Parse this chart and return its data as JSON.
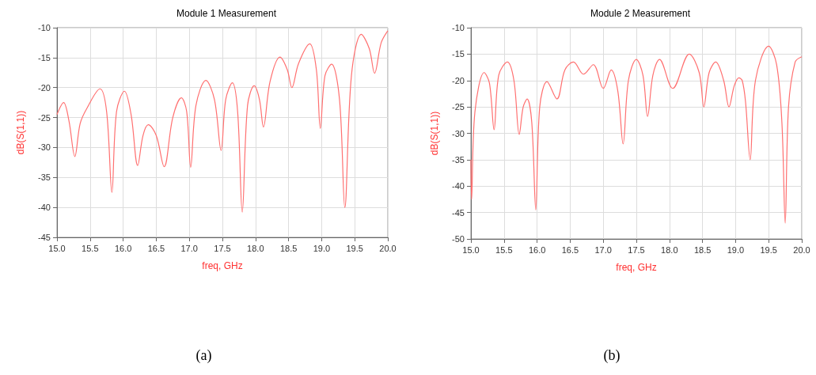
{
  "chart_data": [
    {
      "type": "line",
      "title": "Module 1 Measurement",
      "xlabel": "freq, GHz",
      "ylabel": "dB(S(1,1))",
      "annotations": [
        "(a)"
      ],
      "grid": true,
      "marker": "none",
      "line_style": "solid",
      "xlim": [
        15,
        20
      ],
      "xticks": [
        {
          "value": 15,
          "label": "15.0"
        },
        {
          "value": 15.5,
          "label": "15.5"
        },
        {
          "value": 16,
          "label": "16.0"
        },
        {
          "value": 16.5,
          "label": "16.5"
        },
        {
          "value": 17,
          "label": "17.0"
        },
        {
          "value": 17.5,
          "label": "17.5"
        },
        {
          "value": 18,
          "label": "18.0"
        },
        {
          "value": 18.5,
          "label": "18.5"
        },
        {
          "value": 19,
          "label": "19.0"
        },
        {
          "value": 19.5,
          "label": "19.5"
        },
        {
          "value": 20,
          "label": "20.0"
        }
      ],
      "ylim": [
        -45,
        -10
      ],
      "yticks": [
        -45,
        -40,
        -35,
        -30,
        -25,
        -20,
        -15,
        -10
      ],
      "series": [
        {
          "color": "#ff7070",
          "x": [
            15.0,
            15.1,
            15.18,
            15.27,
            15.35,
            15.45,
            15.65,
            15.75,
            15.83,
            15.9,
            16.02,
            16.12,
            16.22,
            16.3,
            16.38,
            16.5,
            16.62,
            16.75,
            16.88,
            16.96,
            17.02,
            17.1,
            17.25,
            17.38,
            17.48,
            17.55,
            17.65,
            17.73,
            17.8,
            17.88,
            17.98,
            18.06,
            18.12,
            18.22,
            18.37,
            18.48,
            18.55,
            18.65,
            18.82,
            18.92,
            18.98,
            19.05,
            19.15,
            19.27,
            19.35,
            19.45,
            19.6,
            19.72,
            19.8,
            19.9,
            20.0
          ],
          "values": [
            -24.5,
            -22.5,
            -25.5,
            -31.5,
            -26,
            -23.5,
            -20.2,
            -24,
            -37.5,
            -24,
            -20.6,
            -24.5,
            -33,
            -28,
            -26.2,
            -28,
            -33.2,
            -25,
            -21.7,
            -24,
            -33.3,
            -23,
            -18.8,
            -22,
            -30.5,
            -22,
            -19.2,
            -24,
            -40.8,
            -23,
            -19.7,
            -22,
            -26.6,
            -19,
            -14.9,
            -17,
            -20,
            -16,
            -12.7,
            -17,
            -26.8,
            -18,
            -16.1,
            -22,
            -40,
            -18,
            -11.1,
            -13.5,
            -17.6,
            -12.5,
            -10.5
          ]
        }
      ]
    },
    {
      "type": "line",
      "title": "Module 2 Measurement",
      "xlabel": "freq, GHz",
      "ylabel": "dB(S(1,1))",
      "annotations": [
        "(b)"
      ],
      "grid": true,
      "marker": "none",
      "line_style": "solid",
      "xlim": [
        15,
        20
      ],
      "xticks": [
        {
          "value": 15,
          "label": "15.0"
        },
        {
          "value": 15.5,
          "label": "15.5"
        },
        {
          "value": 16,
          "label": "16.0"
        },
        {
          "value": 16.5,
          "label": "16.5"
        },
        {
          "value": 17,
          "label": "17.0"
        },
        {
          "value": 17.5,
          "label": "17.5"
        },
        {
          "value": 18,
          "label": "18.0"
        },
        {
          "value": 18.5,
          "label": "18.5"
        },
        {
          "value": 19,
          "label": "19.0"
        },
        {
          "value": 19.5,
          "label": "19.5"
        },
        {
          "value": 20,
          "label": "20.0"
        }
      ],
      "ylim": [
        -50,
        -10
      ],
      "yticks": [
        -50,
        -45,
        -40,
        -35,
        -30,
        -25,
        -20,
        -15,
        -10
      ],
      "series": [
        {
          "color": "#ff7070",
          "x": [
            15.0,
            15.01,
            15.06,
            15.2,
            15.28,
            15.35,
            15.42,
            15.55,
            15.65,
            15.73,
            15.79,
            15.85,
            15.92,
            15.98,
            16.04,
            16.15,
            16.3,
            16.42,
            16.55,
            16.7,
            16.85,
            17.0,
            17.12,
            17.22,
            17.3,
            17.38,
            17.5,
            17.6,
            17.67,
            17.75,
            17.85,
            18.05,
            18.3,
            18.45,
            18.52,
            18.6,
            18.7,
            18.82,
            18.9,
            18.98,
            19.05,
            19.1,
            19.15,
            19.22,
            19.3,
            19.5,
            19.62,
            19.7,
            19.75,
            19.8,
            19.9,
            20.0
          ],
          "values": [
            -35,
            -42.5,
            -26,
            -18.5,
            -20.5,
            -29.3,
            -19,
            -16.5,
            -20,
            -30.2,
            -25,
            -23.5,
            -28,
            -44.5,
            -25,
            -20.2,
            -23.5,
            -18,
            -16.5,
            -18.8,
            -17,
            -21.5,
            -18,
            -22,
            -32,
            -20,
            -16,
            -19,
            -26.8,
            -19,
            -16,
            -21.5,
            -15,
            -18.5,
            -25,
            -18.5,
            -16.5,
            -20,
            -25,
            -21,
            -19.5,
            -20,
            -24,
            -35,
            -20,
            -13.5,
            -17,
            -28,
            -47,
            -25,
            -16.5,
            -15.5
          ]
        }
      ]
    }
  ]
}
